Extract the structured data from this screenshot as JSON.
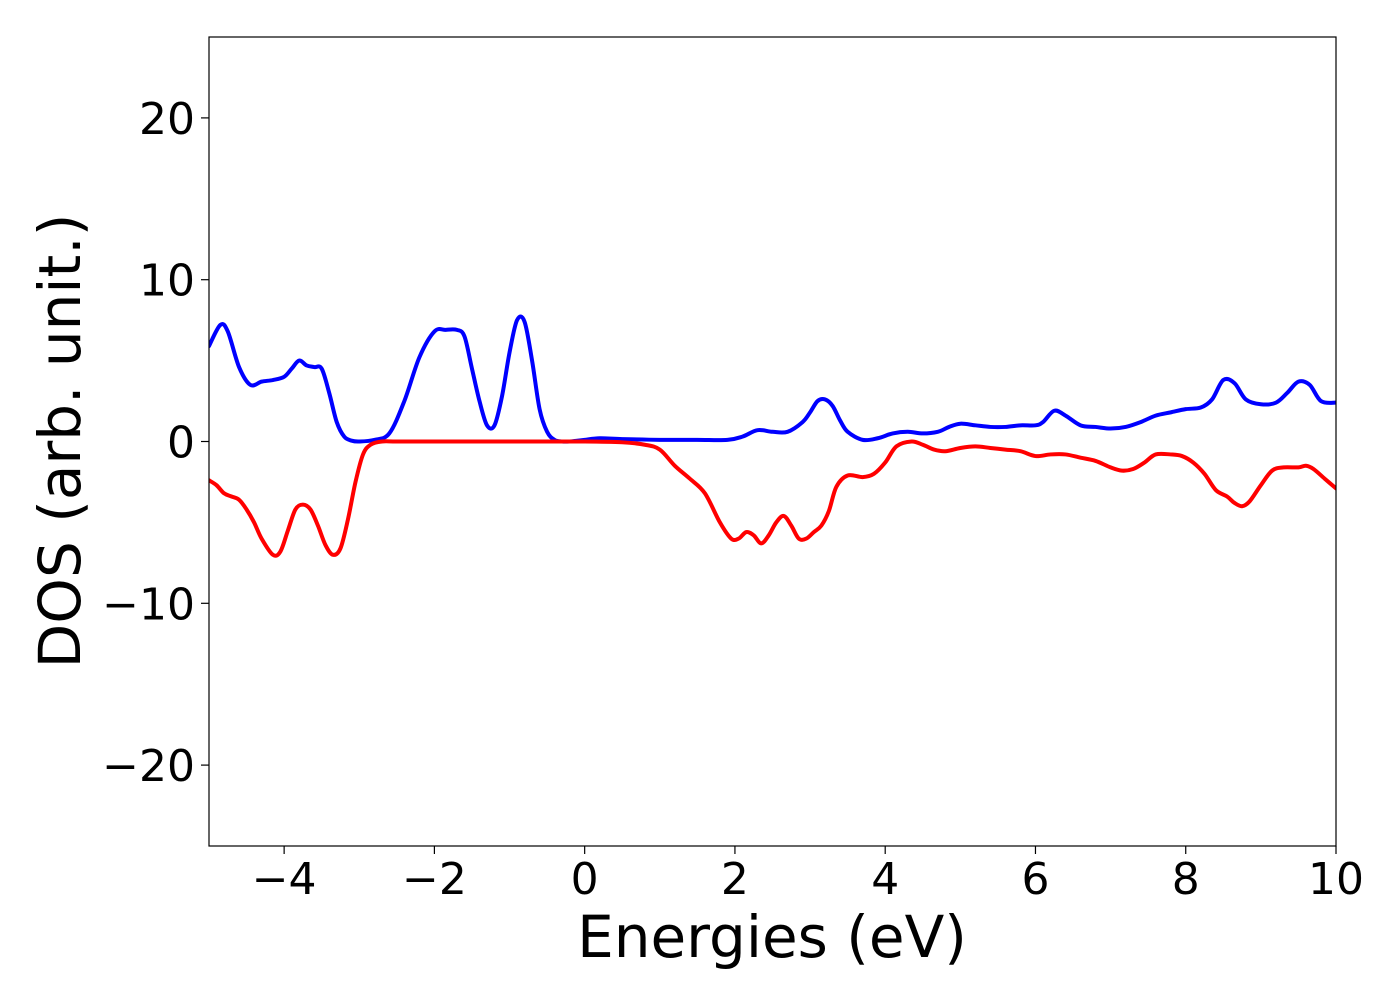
{
  "chart_data": {
    "type": "line",
    "title": "",
    "xlabel": "Energies (eV)",
    "ylabel": "DOS (arb. unit.)",
    "xlim": [
      -5,
      10
    ],
    "ylim": [
      -25,
      25
    ],
    "grid": false,
    "x_ticks": [
      -4,
      -2,
      0,
      2,
      4,
      6,
      8,
      10
    ],
    "x_tick_labels": [
      "−4",
      "−2",
      "0",
      "2",
      "4",
      "6",
      "8",
      "10"
    ],
    "y_ticks": [
      -20,
      -10,
      0,
      10,
      20
    ],
    "y_tick_labels": [
      "−20",
      "−10",
      "0",
      "10",
      "20"
    ],
    "series": [
      {
        "color": "#0000ff",
        "x": [
          -5.0,
          -4.85,
          -4.75,
          -4.6,
          -4.45,
          -4.3,
          -4.15,
          -4.0,
          -3.9,
          -3.8,
          -3.7,
          -3.6,
          -3.5,
          -3.4,
          -3.3,
          -3.2,
          -3.1,
          -3.0,
          -2.8,
          -2.6,
          -2.4,
          -2.2,
          -2.0,
          -1.85,
          -1.7,
          -1.6,
          -1.5,
          -1.4,
          -1.3,
          -1.2,
          -1.1,
          -1.0,
          -0.9,
          -0.8,
          -0.7,
          -0.6,
          -0.5,
          -0.4,
          -0.3,
          -0.2,
          -0.1,
          0.0,
          0.2,
          0.5,
          1.0,
          1.5,
          1.9,
          2.1,
          2.3,
          2.5,
          2.7,
          2.9,
          3.0,
          3.1,
          3.2,
          3.3,
          3.4,
          3.5,
          3.7,
          3.9,
          4.1,
          4.3,
          4.5,
          4.7,
          4.85,
          5.0,
          5.2,
          5.4,
          5.6,
          5.8,
          6.0,
          6.1,
          6.25,
          6.4,
          6.6,
          6.8,
          7.0,
          7.2,
          7.4,
          7.6,
          7.8,
          8.0,
          8.2,
          8.35,
          8.5,
          8.65,
          8.8,
          9.0,
          9.2,
          9.35,
          9.5,
          9.65,
          9.8,
          10.0
        ],
        "y": [
          5.9,
          7.2,
          6.8,
          4.6,
          3.5,
          3.7,
          3.8,
          4.0,
          4.5,
          5.0,
          4.7,
          4.6,
          4.5,
          3.0,
          1.2,
          0.3,
          0.05,
          0.0,
          0.1,
          0.5,
          2.5,
          5.2,
          6.8,
          6.9,
          6.9,
          6.5,
          4.5,
          2.5,
          1.0,
          1.0,
          2.8,
          5.5,
          7.5,
          7.4,
          5.0,
          2.0,
          0.6,
          0.1,
          0.0,
          0.0,
          0.05,
          0.1,
          0.2,
          0.15,
          0.1,
          0.1,
          0.1,
          0.3,
          0.7,
          0.6,
          0.6,
          1.2,
          1.8,
          2.5,
          2.6,
          2.2,
          1.3,
          0.6,
          0.1,
          0.2,
          0.5,
          0.6,
          0.5,
          0.6,
          0.9,
          1.1,
          1.0,
          0.9,
          0.9,
          1.0,
          1.0,
          1.2,
          1.9,
          1.6,
          1.0,
          0.9,
          0.8,
          0.9,
          1.2,
          1.6,
          1.8,
          2.0,
          2.1,
          2.6,
          3.8,
          3.6,
          2.6,
          2.3,
          2.4,
          3.0,
          3.7,
          3.5,
          2.5,
          2.4
        ]
      },
      {
        "color": "#ff0000",
        "x": [
          -5.0,
          -4.9,
          -4.8,
          -4.7,
          -4.6,
          -4.5,
          -4.4,
          -4.3,
          -4.15,
          -4.05,
          -3.95,
          -3.85,
          -3.75,
          -3.65,
          -3.55,
          -3.45,
          -3.35,
          -3.25,
          -3.15,
          -3.05,
          -2.95,
          -2.85,
          -2.7,
          -2.5,
          -2.0,
          -1.0,
          0.0,
          0.5,
          0.8,
          1.0,
          1.2,
          1.4,
          1.6,
          1.8,
          1.95,
          2.05,
          2.15,
          2.25,
          2.35,
          2.45,
          2.55,
          2.65,
          2.75,
          2.85,
          2.95,
          3.05,
          3.15,
          3.25,
          3.35,
          3.5,
          3.7,
          3.85,
          4.0,
          4.15,
          4.35,
          4.5,
          4.65,
          4.8,
          5.0,
          5.2,
          5.4,
          5.6,
          5.8,
          6.0,
          6.2,
          6.4,
          6.6,
          6.8,
          7.0,
          7.15,
          7.3,
          7.45,
          7.6,
          7.8,
          7.95,
          8.1,
          8.25,
          8.4,
          8.55,
          8.65,
          8.75,
          8.85,
          9.0,
          9.15,
          9.3,
          9.5,
          9.6,
          9.7,
          9.85,
          10.0
        ],
        "y": [
          -2.4,
          -2.7,
          -3.2,
          -3.4,
          -3.6,
          -4.2,
          -5.0,
          -6.0,
          -7.0,
          -6.8,
          -5.5,
          -4.2,
          -3.9,
          -4.2,
          -5.2,
          -6.4,
          -7.0,
          -6.6,
          -4.8,
          -2.5,
          -0.8,
          -0.2,
          0.0,
          0.0,
          0.0,
          0.0,
          0.0,
          -0.05,
          -0.2,
          -0.5,
          -1.5,
          -2.3,
          -3.2,
          -5.0,
          -6.0,
          -6.0,
          -5.6,
          -5.8,
          -6.3,
          -5.8,
          -5.0,
          -4.6,
          -5.2,
          -6.0,
          -6.0,
          -5.6,
          -5.2,
          -4.3,
          -2.8,
          -2.1,
          -2.2,
          -2.0,
          -1.3,
          -0.3,
          0.0,
          -0.2,
          -0.5,
          -0.6,
          -0.4,
          -0.3,
          -0.4,
          -0.5,
          -0.6,
          -0.9,
          -0.8,
          -0.8,
          -1.0,
          -1.2,
          -1.6,
          -1.8,
          -1.7,
          -1.3,
          -0.8,
          -0.8,
          -0.9,
          -1.3,
          -2.0,
          -3.0,
          -3.4,
          -3.8,
          -4.0,
          -3.7,
          -2.7,
          -1.8,
          -1.6,
          -1.6,
          -1.5,
          -1.7,
          -2.3,
          -2.9
        ]
      }
    ]
  }
}
